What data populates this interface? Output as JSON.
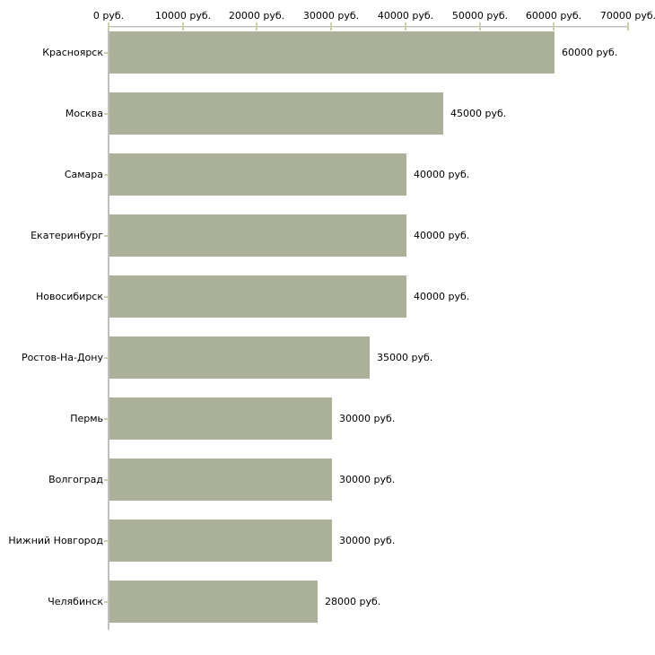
{
  "chart_data": {
    "type": "bar",
    "orientation": "horizontal",
    "title": "",
    "xlabel": "",
    "ylabel": "",
    "unit": "руб.",
    "categories": [
      "Красноярск",
      "Москва",
      "Самара",
      "Екатеринбург",
      "Новосибирск",
      "Ростов-На-Дону",
      "Пермь",
      "Волгоград",
      "Нижний Новгород",
      "Челябинск"
    ],
    "values": [
      60000,
      45000,
      40000,
      40000,
      40000,
      35000,
      30000,
      30000,
      30000,
      28000
    ],
    "value_labels": [
      "60000 руб.",
      "45000 руб.",
      "40000 руб.",
      "40000 руб.",
      "40000 руб.",
      "35000 руб.",
      "30000 руб.",
      "30000 руб.",
      "30000 руб.",
      "28000 руб."
    ],
    "xlim": [
      0,
      70000
    ],
    "x_tick_values": [
      0,
      10000,
      20000,
      30000,
      40000,
      50000,
      60000,
      70000
    ],
    "x_tick_labels": [
      "0 руб.",
      "10000 руб.",
      "20000 руб.",
      "30000 руб.",
      "40000 руб.",
      "50000 руб.",
      "60000 руб.",
      "70000 руб."
    ],
    "x_axis_position": "top",
    "grid": false,
    "legend": null,
    "colors": {
      "bar": "#abb198",
      "axis": "#c0bfbf",
      "axis_shadow": "#e2e3d7",
      "tick": "#cdd0aa",
      "text": "#000000",
      "background": "#ffffff"
    }
  }
}
